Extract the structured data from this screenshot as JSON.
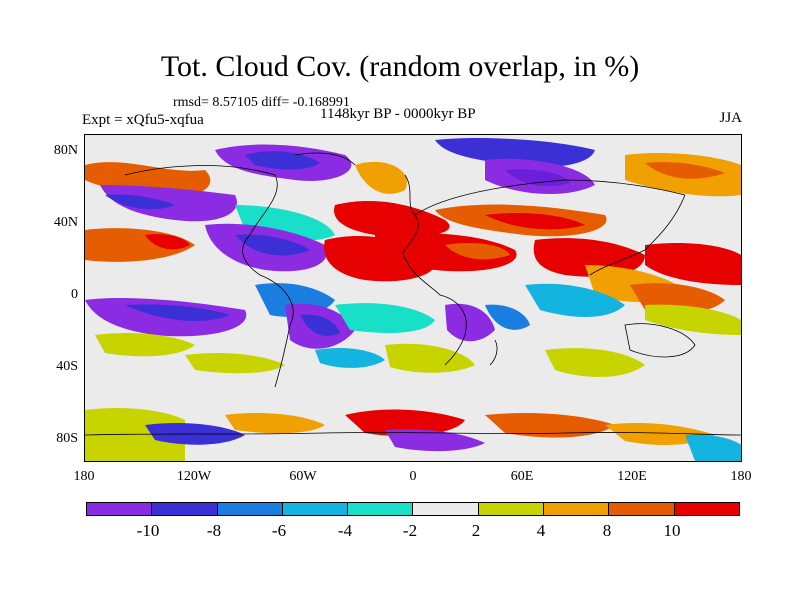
{
  "title": "Tot. Cloud Cov. (random overlap, in %)",
  "stats": "rmsd= 8.57105 diff= -0.168991",
  "period": "1148kyr BP - 0000kyr BP",
  "experiment": "Expt = xQfu5-xqfua",
  "season": "JJA",
  "lat_labels": [
    "80N",
    "40N",
    "0",
    "40S",
    "80S"
  ],
  "lon_labels": [
    "180",
    "120W",
    "60W",
    "0",
    "60E",
    "120E",
    "180"
  ],
  "colorbar": {
    "labels": [
      "-10",
      "-8",
      "-6",
      "-4",
      "-2",
      "2",
      "4",
      "8",
      "10"
    ],
    "colors": [
      "#8b2be2",
      "#3b2fd6",
      "#1a7de0",
      "#14b4e0",
      "#18e0c8",
      "#ebebeb",
      "#c8d400",
      "#f0a000",
      "#e65c00",
      "#e60000"
    ]
  }
}
